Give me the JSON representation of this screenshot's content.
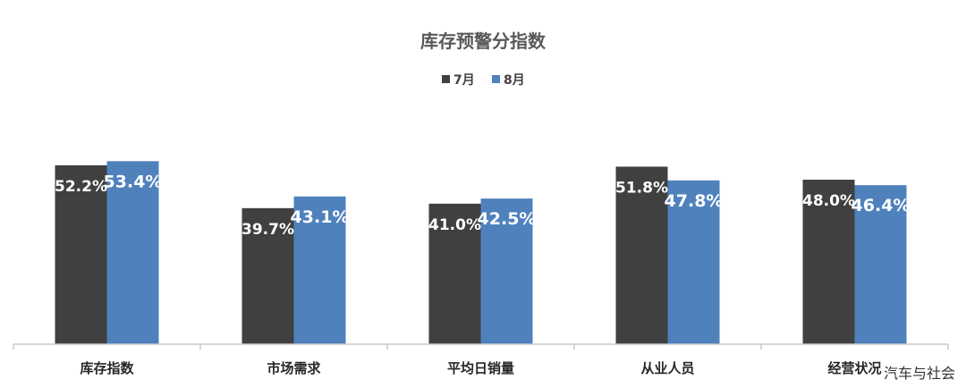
{
  "chart_data": {
    "type": "bar",
    "title": "库存预警分指数",
    "categories": [
      "库存指数",
      "市场需求",
      "平均日销量",
      "从业人员",
      "经营状况"
    ],
    "series": [
      {
        "name": "7月",
        "values": [
          52.2,
          39.7,
          41.0,
          51.8,
          48.0
        ],
        "labels": [
          "52.2%",
          "39.7%",
          "41.0%",
          "51.8%",
          "48.0%"
        ],
        "color": "#404040"
      },
      {
        "name": "8月",
        "values": [
          53.4,
          43.1,
          42.5,
          47.8,
          46.4
        ],
        "labels": [
          "53.4%",
          "43.1%",
          "42.5%",
          "47.8%",
          "46.4%"
        ],
        "color": "#4f81bd"
      }
    ],
    "ylim": [
      0,
      54
    ],
    "legend_position": "top-center",
    "grid": false
  },
  "watermark": "汽车与社会"
}
